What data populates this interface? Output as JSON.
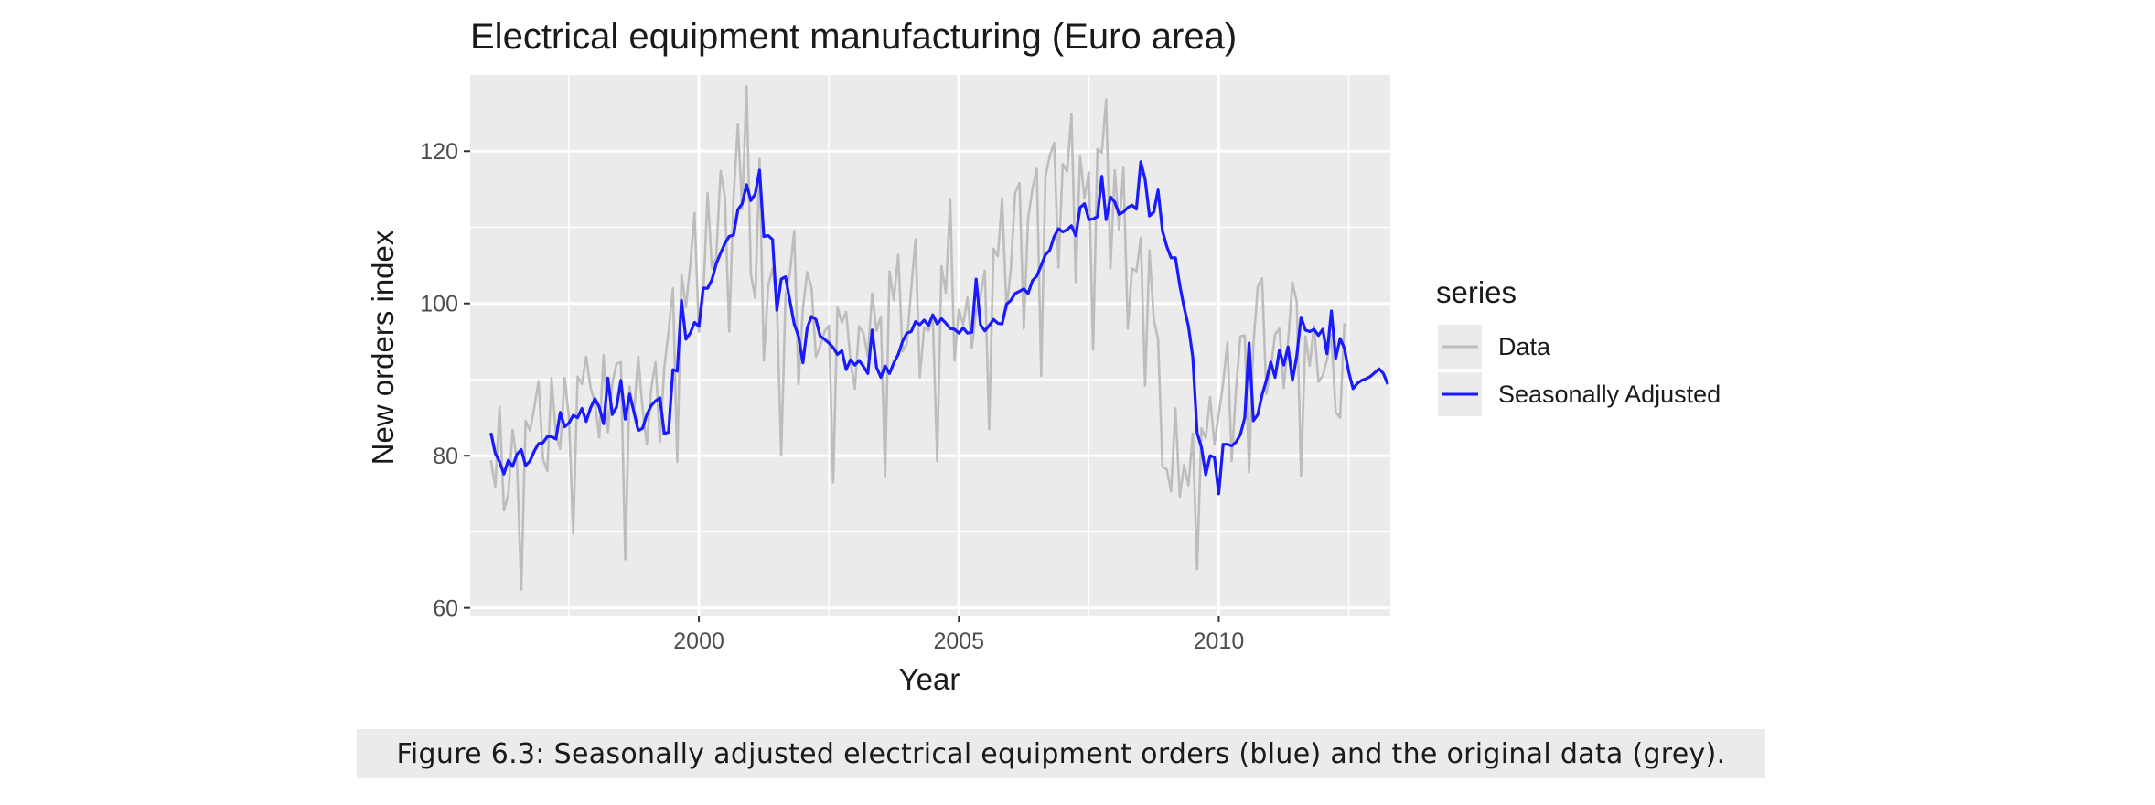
{
  "caption": "Figure 6.3: Seasonally adjusted electrical equipment orders (blue) and the original data (grey).",
  "colors": {
    "panel_background": "#ebebeb",
    "grid": "#ffffff",
    "data_series": "#bdbdbd",
    "seasonally_adjusted": "#1a1aff"
  },
  "chart_data": {
    "type": "line",
    "title": "Electrical equipment manufacturing (Euro area)",
    "xlabel": "Year",
    "ylabel": "New orders index",
    "xlim": [
      1995.6,
      2013.3
    ],
    "ylim": [
      59,
      130
    ],
    "x_ticks": [
      2000,
      2005,
      2010
    ],
    "y_ticks": [
      60,
      80,
      100,
      120
    ],
    "grid": true,
    "legend": {
      "title": "series",
      "position": "right"
    },
    "x_start": 1996.0,
    "x_step": 0.0833333,
    "series": [
      {
        "name": "Data",
        "color": "#bdbdbd",
        "values": [
          79.4,
          75.9,
          86.4,
          72.8,
          74.9,
          83.4,
          79.2,
          62.4,
          84.6,
          83.3,
          86.3,
          89.8,
          79.6,
          78.0,
          90.2,
          82.8,
          80.9,
          90.2,
          85.1,
          69.8,
          90.4,
          89.4,
          93.0,
          88.9,
          87.0,
          82.4,
          93.2,
          83.1,
          89.5,
          92.1,
          92.3,
          66.4,
          89.1,
          85.5,
          93.0,
          86.2,
          81.5,
          88.9,
          92.3,
          81.8,
          91.5,
          96.3,
          102.0,
          79.2,
          103.8,
          99.5,
          105.0,
          111.9,
          96.3,
          100.7,
          114.5,
          104.7,
          106.0,
          117.4,
          114.0,
          96.3,
          113.9,
          123.5,
          112.4,
          128.5,
          103.8,
          100.7,
          119.0,
          92.5,
          102.4,
          104.6,
          100.3,
          80.0,
          101.0,
          103.9,
          109.5,
          89.4,
          99.3,
          104.1,
          102.1,
          93.0,
          94.4,
          96.3,
          97.1,
          76.5,
          99.5,
          97.5,
          98.9,
          92.4,
          88.8,
          97.0,
          96.1,
          93.0,
          101.3,
          96.4,
          98.3,
          77.3,
          104.2,
          100.4,
          106.4,
          93.7,
          94.7,
          101.9,
          108.4,
          90.3,
          96.9,
          96.4,
          98.3,
          79.3,
          104.9,
          101.4,
          113.7,
          92.5,
          99.2,
          97.2,
          100.8,
          94.1,
          99.0,
          101.0,
          104.3,
          83.5,
          107.2,
          106.2,
          113.8,
          99.2,
          104.5,
          114.5,
          115.8,
          96.7,
          111.1,
          115.1,
          117.7,
          90.5,
          116.7,
          119.4,
          121.1,
          104.7,
          118.3,
          117.3,
          124.9,
          102.8,
          119.4,
          113.8,
          117.2,
          93.9,
          120.3,
          119.8,
          126.8,
          104.6,
          117.5,
          109.7,
          117.8,
          96.7,
          104.6,
          104.2,
          108.6,
          89.2,
          107.0,
          97.9,
          95.3,
          78.6,
          78.2,
          75.3,
          86.2,
          74.6,
          78.8,
          76.1,
          82.9,
          65.1,
          83.6,
          82.3,
          87.7,
          81.5,
          85.4,
          89.5,
          94.9,
          79.3,
          88.8,
          95.7,
          95.8,
          77.8,
          94.6,
          102.2,
          103.3,
          88.1,
          91.4,
          95.9,
          96.7,
          88.9,
          94.9,
          102.8,
          100.2,
          77.4,
          95.7,
          91.8,
          97.1,
          89.7,
          90.5,
          92.6,
          95.9,
          85.7,
          85.0,
          97.4
        ]
      },
      {
        "name": "Seasonally Adjusted",
        "color": "#1a1aff",
        "values": [
          83.0,
          80.3,
          79.2,
          77.6,
          79.4,
          78.6,
          80.2,
          80.8,
          78.7,
          79.3,
          80.6,
          81.6,
          81.7,
          82.5,
          82.5,
          82.2,
          85.7,
          83.8,
          84.3,
          85.3,
          85.0,
          86.2,
          84.5,
          86.3,
          87.5,
          86.4,
          84.2,
          90.2,
          85.4,
          86.4,
          89.9,
          84.8,
          88.1,
          85.8,
          83.3,
          83.6,
          85.4,
          86.6,
          87.2,
          87.6,
          82.9,
          83.1,
          91.3,
          91.1,
          100.4,
          95.3,
          96.1,
          97.5,
          97.0,
          102.0,
          102.0,
          103.1,
          105.2,
          106.6,
          107.9,
          108.8,
          109.0,
          112.3,
          113.1,
          115.6,
          113.5,
          114.4,
          117.5,
          108.8,
          108.9,
          108.4,
          99.1,
          103.2,
          103.5,
          100.4,
          97.3,
          95.7,
          92.2,
          96.8,
          98.3,
          97.9,
          95.7,
          95.3,
          94.8,
          94.2,
          93.3,
          93.8,
          91.3,
          92.6,
          91.9,
          92.5,
          91.7,
          90.8,
          96.5,
          91.6,
          90.3,
          91.8,
          90.8,
          92.2,
          93.3,
          95.0,
          96.1,
          96.3,
          97.6,
          97.2,
          97.8,
          97.1,
          98.5,
          97.3,
          98.0,
          97.4,
          96.7,
          96.6,
          96.1,
          96.8,
          96.1,
          96.2,
          103.2,
          97.2,
          96.4,
          97.1,
          97.9,
          97.4,
          97.3,
          99.9,
          100.4,
          101.3,
          101.6,
          101.9,
          101.3,
          103.0,
          103.6,
          105.0,
          106.4,
          107.0,
          108.8,
          109.8,
          109.4,
          109.7,
          110.2,
          108.9,
          112.6,
          113.1,
          111.0,
          111.1,
          111.4,
          116.7,
          111.0,
          114.0,
          113.3,
          111.7,
          112.0,
          112.6,
          112.9,
          112.4,
          118.6,
          116.3,
          111.5,
          112.0,
          114.9,
          109.5,
          107.5,
          106.0,
          106.0,
          102.4,
          99.5,
          97.0,
          93.0,
          83.0,
          81.1,
          77.5,
          80.0,
          79.8,
          75.0,
          81.5,
          81.5,
          81.3,
          81.8,
          82.8,
          85.0,
          94.8,
          84.6,
          85.4,
          88.0,
          89.9,
          92.3,
          90.3,
          93.8,
          91.9,
          94.3,
          89.9,
          93.1,
          98.2,
          96.5,
          96.3,
          96.6,
          95.8,
          96.6,
          93.4,
          99.0,
          92.8,
          95.4,
          94.1,
          91.0,
          88.8,
          89.5,
          89.9,
          90.1,
          90.4,
          90.9,
          91.4,
          90.8,
          89.4
        ]
      }
    ]
  }
}
